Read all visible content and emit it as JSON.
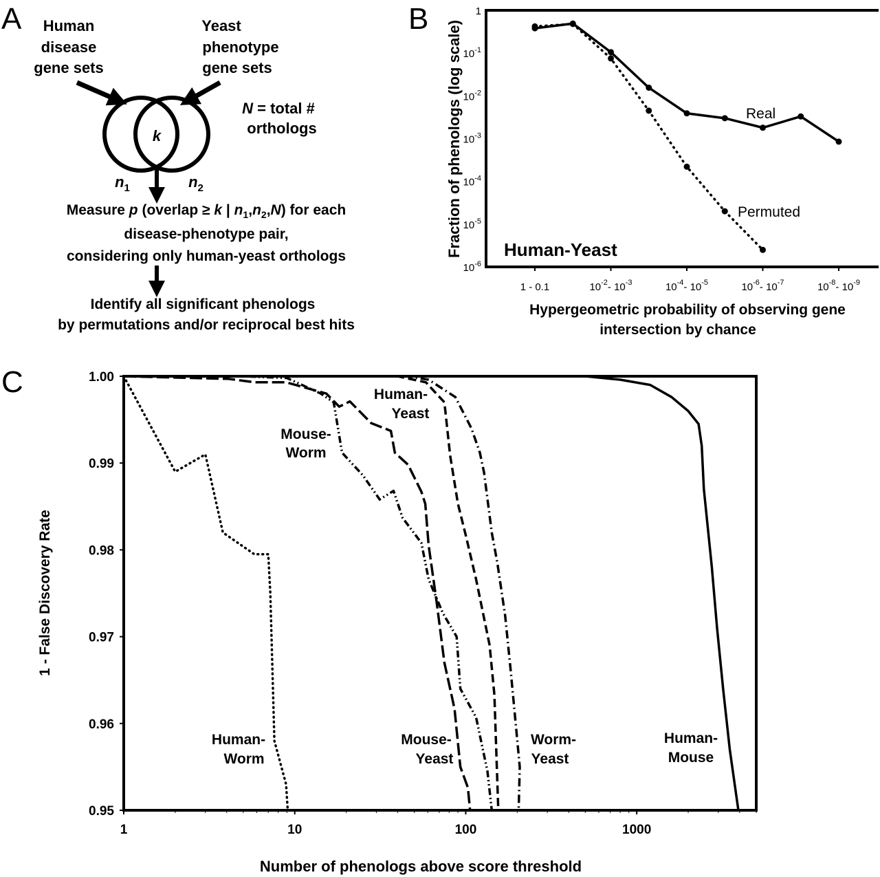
{
  "panel_labels": [
    "A",
    "B",
    "C"
  ],
  "panel_a": {
    "human_sets": [
      "Human",
      "disease",
      "gene sets"
    ],
    "yeast_sets": [
      "Yeast",
      "phenotype",
      "gene sets"
    ],
    "overlap_label": "k",
    "n1": {
      "base": "n",
      "sub": "1"
    },
    "n2": {
      "base": "n",
      "sub": "2"
    },
    "total": {
      "italic": "N",
      "rest": " = total #",
      "line2": "orthologs"
    },
    "measure_line": [
      "Measure ",
      "p",
      " (overlap ≥ ",
      "k",
      " | ",
      "n",
      "1",
      ",",
      "n",
      "2",
      ",",
      "N",
      ") for each"
    ],
    "measure_line2": "disease-phenotype pair,",
    "measure_line3": "considering only human-yeast orthologs",
    "identify_line1": "Identify all significant phenologs",
    "identify_line2": "by permutations and/or reciprocal best hits"
  },
  "chart_data": [
    {
      "panel": "B",
      "type": "line",
      "scale_y": "log",
      "ylabel": "Fraction of phenologs (log scale)",
      "xlabel": [
        "Hypergeometric probability of observing gene",
        "intersection by chance"
      ],
      "annotation": "Human-Yeast",
      "ylim": [
        1e-06,
        1
      ],
      "y_ticks": [
        {
          "text": "1"
        },
        {
          "text": "10",
          "sup": "-1"
        },
        {
          "text": "10",
          "sup": "-2"
        },
        {
          "text": "10",
          "sup": "-3"
        },
        {
          "text": "10",
          "sup": "-4"
        },
        {
          "text": "10",
          "sup": "-5"
        },
        {
          "text": "10",
          "sup": "-6"
        }
      ],
      "x_bins": 9,
      "x_ticks": [
        {
          "bin": 0,
          "parts": [
            {
              "text": "1 - 0.1"
            }
          ]
        },
        {
          "bin": 2,
          "parts": [
            {
              "text": "10"
            },
            {
              "sup": "-2"
            },
            {
              "text": "- 10"
            },
            {
              "sup": "-3"
            }
          ]
        },
        {
          "bin": 4,
          "parts": [
            {
              "text": "10"
            },
            {
              "sup": "-4"
            },
            {
              "text": "- 10"
            },
            {
              "sup": "-5"
            }
          ]
        },
        {
          "bin": 6,
          "parts": [
            {
              "text": "10"
            },
            {
              "sup": "-6"
            },
            {
              "text": "- 10"
            },
            {
              "sup": "-7"
            }
          ]
        },
        {
          "bin": 8,
          "parts": [
            {
              "text": "10"
            },
            {
              "sup": "-8"
            },
            {
              "text": "- 10"
            },
            {
              "sup": "-9"
            }
          ]
        }
      ],
      "series": [
        {
          "name": "Real",
          "style": "solid",
          "values": [
            0.38,
            0.49,
            0.105,
            0.0155,
            0.0039,
            0.003,
            0.0018,
            0.0033,
            0.00085
          ]
        },
        {
          "name": "Permuted",
          "style": "dotted",
          "values": [
            0.42,
            0.48,
            0.075,
            0.0045,
            0.00022,
            2e-05,
            2.5e-06,
            null,
            null
          ]
        }
      ]
    },
    {
      "panel": "C",
      "type": "line",
      "scale_x": "log",
      "xlabel": "Number of phenologs above score threshold",
      "ylabel": "1 - False Discovery Rate",
      "xlim": [
        1,
        5000
      ],
      "ylim": [
        0.95,
        1.0
      ],
      "x_ticks": [
        {
          "v": 1,
          "label": "1"
        },
        {
          "v": 10,
          "label": "10"
        },
        {
          "v": 100,
          "label": "100"
        },
        {
          "v": 1000,
          "label": "1000"
        }
      ],
      "y_ticks": [
        {
          "v": 1.0,
          "label": "1.00"
        },
        {
          "v": 0.99,
          "label": "0.99"
        },
        {
          "v": 0.98,
          "label": "0.98"
        },
        {
          "v": 0.97,
          "label": "0.97"
        },
        {
          "v": 0.96,
          "label": "0.96"
        },
        {
          "v": 0.95,
          "label": "0.95"
        }
      ],
      "grid": false,
      "series": [
        {
          "name": "Human-Worm",
          "label_lines": [
            "Human-",
            "Worm"
          ],
          "style": "dotted",
          "points": [
            [
              1,
              1.0
            ],
            [
              2,
              0.989
            ],
            [
              3,
              0.991
            ],
            [
              3.8,
              0.982
            ],
            [
              5.8,
              0.9795
            ],
            [
              7,
              0.9795
            ],
            [
              7.2,
              0.975
            ],
            [
              7.6,
              0.958
            ],
            [
              8.9,
              0.953
            ],
            [
              9.1,
              0.95
            ]
          ]
        },
        {
          "name": "Mouse-Worm",
          "label_lines": [
            "Mouse-",
            "Worm"
          ],
          "style": "dash-dot-dot",
          "points": [
            [
              1,
              1.0
            ],
            [
              5,
              1.0
            ],
            [
              9,
              0.9998
            ],
            [
              14.2,
              0.998
            ],
            [
              16.9,
              0.997
            ],
            [
              18.9,
              0.9912
            ],
            [
              25,
              0.9886
            ],
            [
              31.4,
              0.9858
            ],
            [
              37.8,
              0.9868
            ],
            [
              42.7,
              0.9837
            ],
            [
              55,
              0.9808
            ],
            [
              60.7,
              0.9766
            ],
            [
              73.5,
              0.9727
            ],
            [
              88.5,
              0.97
            ],
            [
              93,
              0.964
            ],
            [
              115,
              0.9607
            ],
            [
              134,
              0.9545
            ],
            [
              142,
              0.95
            ]
          ]
        },
        {
          "name": "Mouse-Yeast",
          "label_lines": [
            "Mouse-",
            "Yeast"
          ],
          "style": "long-dash",
          "points": [
            [
              1,
              1.0
            ],
            [
              4.1,
              0.9997
            ],
            [
              5.85,
              0.9993
            ],
            [
              8.9,
              0.9993
            ],
            [
              15.3,
              0.998
            ],
            [
              18.2,
              0.9965
            ],
            [
              21,
              0.9971
            ],
            [
              28,
              0.9946
            ],
            [
              36.5,
              0.9937
            ],
            [
              38.5,
              0.9912
            ],
            [
              46,
              0.9898
            ],
            [
              55,
              0.9867
            ],
            [
              58,
              0.9853
            ],
            [
              60.7,
              0.9805
            ],
            [
              67.6,
              0.974
            ],
            [
              75,
              0.967
            ],
            [
              86,
              0.9617
            ],
            [
              93,
              0.955
            ],
            [
              103,
              0.9526
            ],
            [
              106,
              0.95
            ]
          ]
        },
        {
          "name": "Human-Yeast",
          "label_lines": [
            "Human-",
            "Yeast"
          ],
          "style": "dashed",
          "points": [
            [
              1,
              1.0
            ],
            [
              40,
              1.0
            ],
            [
              58.5,
              0.9993
            ],
            [
              75,
              0.997
            ],
            [
              81,
              0.9909
            ],
            [
              90,
              0.9853
            ],
            [
              100,
              0.9817
            ],
            [
              115,
              0.9766
            ],
            [
              138,
              0.969
            ],
            [
              147,
              0.9633
            ],
            [
              155,
              0.95
            ]
          ]
        },
        {
          "name": "Worm-Yeast",
          "label_lines": [
            "Worm-",
            "Yeast"
          ],
          "style": "dash-dot",
          "points": [
            [
              1,
              1.0
            ],
            [
              45,
              1.0
            ],
            [
              60.7,
              0.9996
            ],
            [
              87,
              0.9976
            ],
            [
              108,
              0.994
            ],
            [
              121,
              0.9912
            ],
            [
              128,
              0.9889
            ],
            [
              142,
              0.982
            ],
            [
              153,
              0.9785
            ],
            [
              170,
              0.9724
            ],
            [
              183,
              0.9662
            ],
            [
              196,
              0.96
            ],
            [
              207,
              0.955
            ],
            [
              204,
              0.95
            ]
          ]
        },
        {
          "name": "Human-Mouse",
          "label_lines": [
            "Human-",
            "Mouse"
          ],
          "style": "solid",
          "points": [
            [
              1,
              1.0
            ],
            [
              500,
              1.0
            ],
            [
              800,
              0.9996
            ],
            [
              1200,
              0.999
            ],
            [
              1600,
              0.9976
            ],
            [
              2000,
              0.996
            ],
            [
              2300,
              0.9945
            ],
            [
              2400,
              0.992
            ],
            [
              2470,
              0.987
            ],
            [
              2750,
              0.978
            ],
            [
              2950,
              0.971
            ],
            [
              3200,
              0.964
            ],
            [
              3500,
              0.957
            ],
            [
              3930,
              0.95
            ]
          ]
        }
      ]
    }
  ]
}
